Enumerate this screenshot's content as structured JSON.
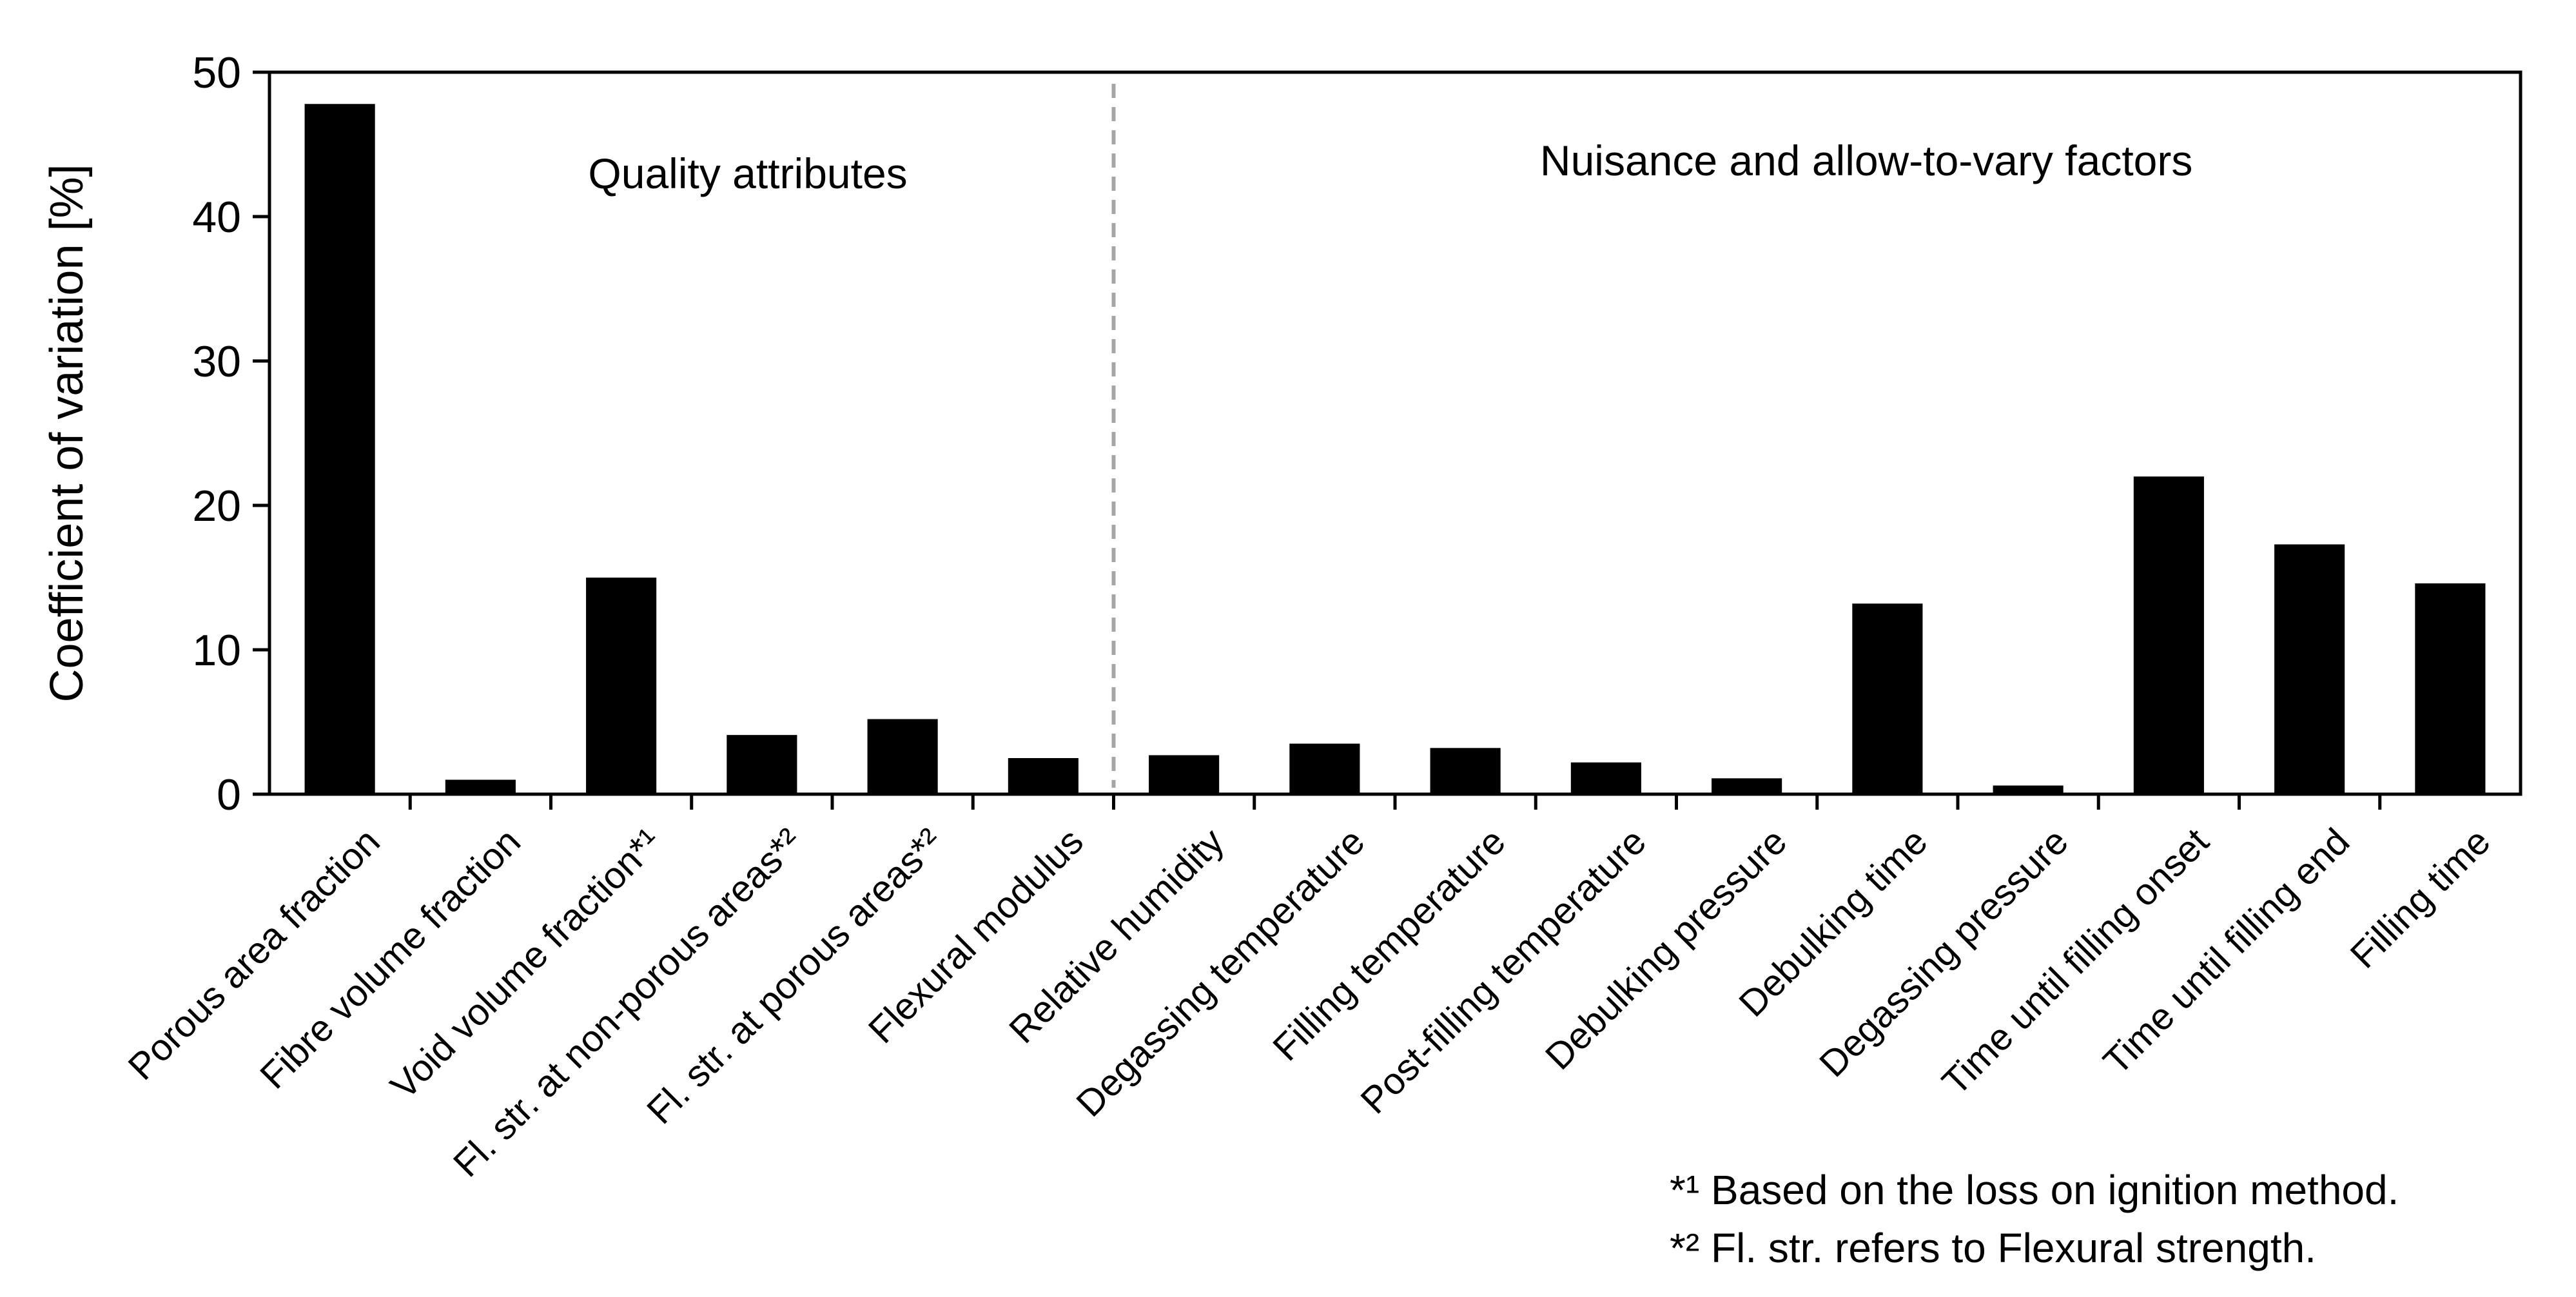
{
  "chart_data": {
    "type": "bar",
    "title": "",
    "xlabel": "",
    "ylabel": "Coefficient of variation [%]",
    "ylim": [
      0,
      50
    ],
    "yticks": [
      0,
      10,
      20,
      30,
      40,
      50
    ],
    "grid": false,
    "legend": "none",
    "bar_color": "#000000",
    "divider_color": "#a6a6a6",
    "categories": [
      "Porous area fraction",
      "Fibre volume fraction",
      "Void volume fraction*¹",
      "Fl. str. at non-porous areas*²",
      "Fl. str. at porous areas*²",
      "Flexural modulus",
      "Relative humidity",
      "Degassing temperature",
      "Filling temperature",
      "Post-filling temperature",
      "Debulking pressure",
      "Debulking time",
      "Degassing pressure",
      "Time until filling onset",
      "Time until filling end",
      "Filling time"
    ],
    "values": [
      47.8,
      1.0,
      15.0,
      4.1,
      5.2,
      2.5,
      2.7,
      3.5,
      3.2,
      2.2,
      1.1,
      13.2,
      0.6,
      22.0,
      17.3,
      14.6
    ],
    "divider_after_index": 5,
    "group_labels": [
      "Quality attributes",
      "Nuisance and allow-to-vary factors"
    ],
    "footnotes": [
      "*¹ Based on the loss on ignition method.",
      "*² Fl. str. refers to Flexural strength."
    ]
  }
}
